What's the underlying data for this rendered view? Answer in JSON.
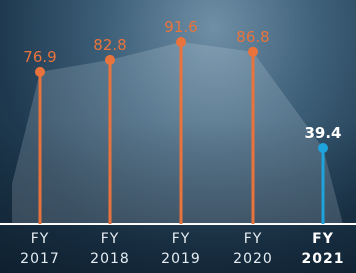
{
  "chart_data": {
    "type": "lollipop",
    "categories": [
      "FY 2017",
      "FY 2018",
      "FY 2019",
      "FY 2020",
      "FY 2021"
    ],
    "values": [
      76.9,
      82.8,
      91.6,
      86.8,
      39.4
    ],
    "colors": [
      "#e9733c",
      "#e9733c",
      "#e9733c",
      "#e9733c",
      "#1ea3dc"
    ],
    "highlight": 4
  }
}
